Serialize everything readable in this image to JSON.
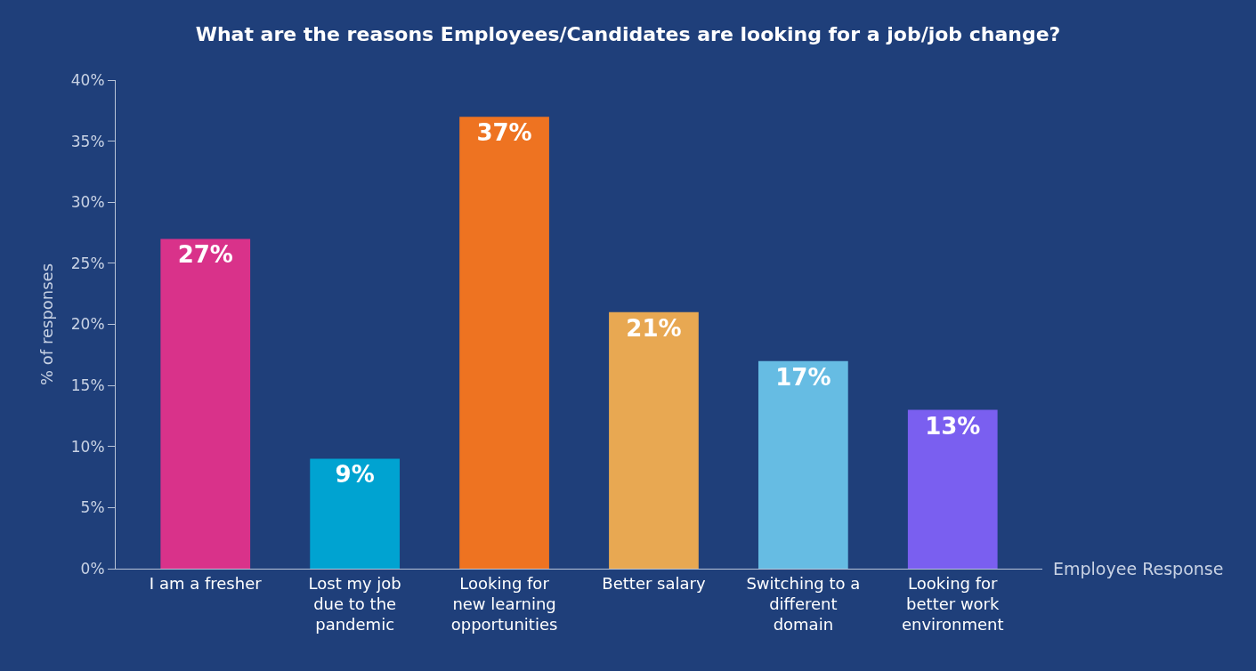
{
  "chart_data": {
    "type": "bar",
    "title": "What are the reasons Employees/Candidates are looking for a job/job change?",
    "xlabel": "Employee Response",
    "ylabel": "% of responses",
    "categories": [
      "I am a fresher",
      "Lost my job due to the pandemic",
      "Looking for new learning opportunities",
      "Better salary",
      "Switching to a different domain",
      "Looking for better work environment"
    ],
    "values": [
      27,
      9,
      37,
      21,
      17,
      13
    ],
    "colors": [
      "#d9328a",
      "#00a3d1",
      "#ee7321",
      "#e8a852",
      "#66bce3",
      "#7a5ff0"
    ],
    "value_labels": [
      "27%",
      "9%",
      "37%",
      "21%",
      "17%",
      "13%"
    ],
    "ylim": [
      0,
      40
    ],
    "yticks": [
      {
        "value": 0,
        "label": "0%"
      },
      {
        "value": 5,
        "label": "5%"
      },
      {
        "value": 10,
        "label": "10%"
      },
      {
        "value": 15,
        "label": "15%"
      },
      {
        "value": 20,
        "label": "20%"
      },
      {
        "value": 25,
        "label": "25%"
      },
      {
        "value": 30,
        "label": "30%"
      },
      {
        "value": 35,
        "label": "35%"
      },
      {
        "value": 40,
        "label": "40%"
      }
    ],
    "grid": false,
    "legend": false
  }
}
